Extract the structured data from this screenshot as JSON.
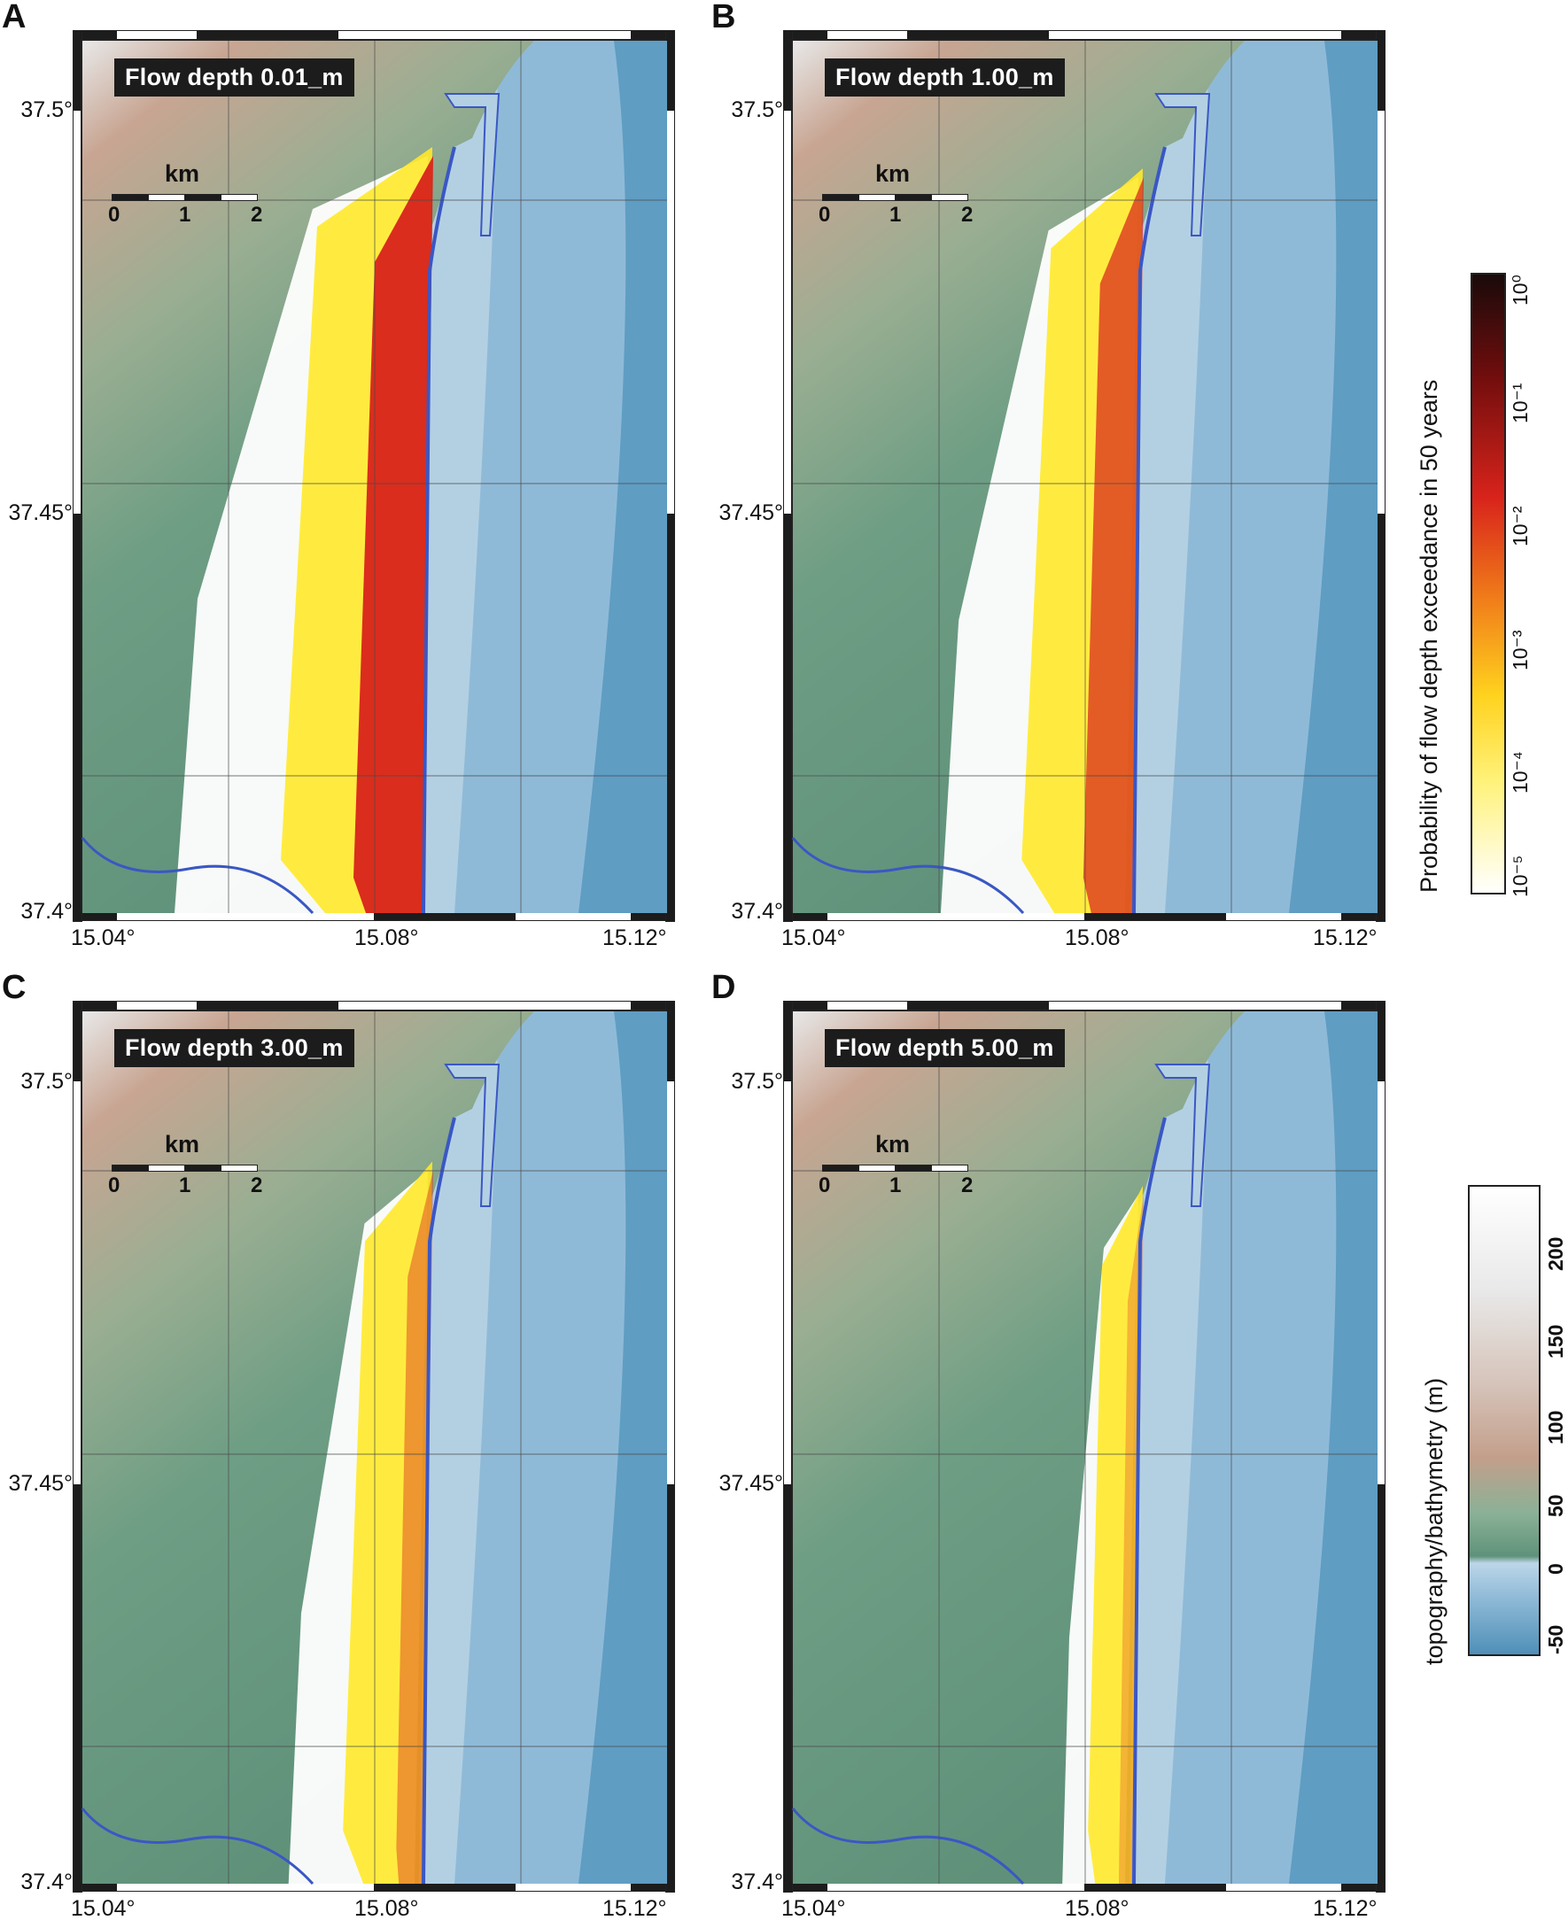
{
  "panels": [
    {
      "letter": "A",
      "title": "Flow depth 0.01_m",
      "extent": 1.0,
      "intensity": 1.0
    },
    {
      "letter": "B",
      "title": "Flow depth 1.00_m",
      "extent": 0.78,
      "intensity": 0.72
    },
    {
      "letter": "C",
      "title": "Flow depth 3.00_m",
      "extent": 0.55,
      "intensity": 0.38
    },
    {
      "letter": "D",
      "title": "Flow depth 5.00_m",
      "extent": 0.3,
      "intensity": 0.2
    }
  ],
  "axes": {
    "lon_ticks": [
      "15.04°",
      "15.08°",
      "15.12°"
    ],
    "lat_ticks": [
      "37.5°",
      "37.45°",
      "37.4°"
    ]
  },
  "scalebar": {
    "unit": "km",
    "labels": [
      "0",
      "1",
      "2"
    ]
  },
  "legend_probability": {
    "title": "Probability of flow depth exceedance in 50 years",
    "ticks": [
      "10⁰",
      "10⁻¹",
      "10⁻²",
      "10⁻³",
      "10⁻⁴",
      "10⁻⁵"
    ]
  },
  "legend_topo": {
    "title": "topography/bathymetry (m)",
    "ticks": [
      "200",
      "150",
      "100",
      "50",
      "0",
      "-50"
    ]
  },
  "colors": {
    "sea_light": "#b3d0e3",
    "sea_mid": "#8fbad7",
    "sea_deep": "#5f9dc3",
    "land_green": "#6e9e84",
    "land_brown": "#c8a592",
    "inundation_yellow": "#ffe92a",
    "inundation_red": "#d8231b",
    "coastline_blue": "#3a57c4"
  }
}
